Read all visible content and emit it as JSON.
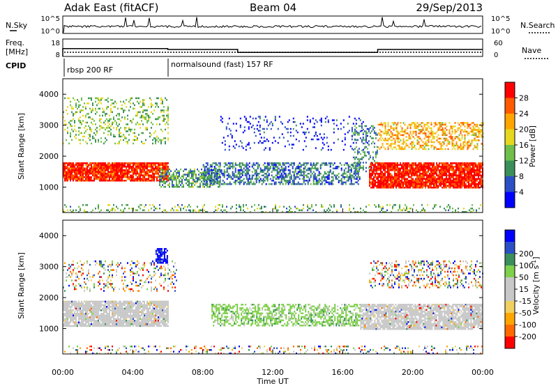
{
  "header": {
    "radar": "Adak East (fitACF)",
    "beam": "Beam 04",
    "date": "29/Sep/2013"
  },
  "top_panels": {
    "nsky": {
      "left_label": "N.Sky",
      "left_ticks": [
        "10^5",
        "10^0"
      ],
      "right_label": "N.Search",
      "right_ticks": [
        "10^5",
        "10^0"
      ]
    },
    "freq": {
      "left_label_1": "Freq.",
      "left_label_2": "[MHz]",
      "left_ticks": [
        "18",
        "8"
      ],
      "right_label": "Nave",
      "right_ticks": [
        "60",
        "0"
      ]
    },
    "cpid": {
      "label": "CPID",
      "segments": [
        {
          "label": "rbsp 200 RF",
          "start_ut": 0.0,
          "end_ut": 6.0
        },
        {
          "label": "normalsound (fast) 157 RF",
          "start_ut": 6.0,
          "end_ut": 24.0
        }
      ]
    }
  },
  "chart_data": [
    {
      "type": "heatmap",
      "name": "power",
      "ylabel": "Slant Range [km]",
      "xlabel": "",
      "xlim_ut": [
        0,
        24
      ],
      "ylim": [
        180,
        4500
      ],
      "yticks": [
        1000,
        2000,
        3000,
        4000
      ],
      "colorbar": {
        "label": "Power [dB]",
        "ticks": [
          4,
          8,
          12,
          16,
          20,
          24,
          28
        ],
        "range": [
          0,
          32
        ],
        "colors": [
          "#0000ff",
          "#2b4fc4",
          "#3a8f5a",
          "#6fbf4a",
          "#e6d820",
          "#ffa500",
          "#ff5a00",
          "#ff0000"
        ]
      },
      "bands": [
        {
          "t0": 0.0,
          "t1": 6.0,
          "r0": 1200,
          "r1": 1800,
          "level": 0.9,
          "density": 0.9
        },
        {
          "t0": 0.0,
          "t1": 6.0,
          "r0": 2400,
          "r1": 3900,
          "level": 0.45,
          "density": 0.25
        },
        {
          "t0": 5.5,
          "t1": 9.0,
          "r0": 1000,
          "r1": 1600,
          "level": 0.35,
          "density": 0.55
        },
        {
          "t0": 8.0,
          "t1": 17.0,
          "r0": 1100,
          "r1": 1800,
          "level": 0.25,
          "density": 0.55
        },
        {
          "t0": 9.0,
          "t1": 17.5,
          "r0": 2200,
          "r1": 3300,
          "level": 0.1,
          "density": 0.12
        },
        {
          "t0": 16.5,
          "t1": 18.0,
          "r0": 1500,
          "r1": 3000,
          "level": 0.3,
          "density": 0.35
        },
        {
          "t0": 17.5,
          "t1": 24.0,
          "r0": 1000,
          "r1": 1800,
          "level": 0.92,
          "density": 0.9
        },
        {
          "t0": 18.0,
          "t1": 24.0,
          "r0": 2200,
          "r1": 3100,
          "level": 0.65,
          "density": 0.45
        },
        {
          "t0": 0.0,
          "t1": 24.0,
          "r0": 200,
          "r1": 450,
          "level": 0.4,
          "density": 0.2
        }
      ]
    },
    {
      "type": "heatmap",
      "name": "velocity",
      "ylabel": "Slant Range [km]",
      "xlabel": "Time UT",
      "xlim_ut": [
        0,
        24
      ],
      "ylim": [
        180,
        4500
      ],
      "yticks": [
        1000,
        2000,
        3000,
        4000
      ],
      "xticks": [
        "00:00",
        "04:00",
        "08:00",
        "12:00",
        "16:00",
        "20:00",
        "00:00"
      ],
      "colorbar": {
        "label": "Velocity [m s^-1]",
        "ticks": [
          -200,
          -100,
          -50,
          -15,
          15,
          50,
          100,
          200
        ],
        "colors": [
          "#ff0000",
          "#ff6a00",
          "#ffa500",
          "#f0d060",
          "#c8c8c8",
          "#c8c8c8",
          "#7fd04a",
          "#3a8f5a",
          "#2b4fc4",
          "#0000ff"
        ]
      },
      "bands": [
        {
          "t0": 0.0,
          "t1": 6.0,
          "r0": 1100,
          "r1": 1900,
          "kind": "gray",
          "density": 0.9
        },
        {
          "t0": 0.0,
          "t1": 6.5,
          "r0": 2200,
          "r1": 3200,
          "kind": "mixed",
          "density": 0.22
        },
        {
          "t0": 5.3,
          "t1": 6.0,
          "r0": 3100,
          "r1": 3600,
          "kind": "blue",
          "density": 0.7
        },
        {
          "t0": 8.5,
          "t1": 17.0,
          "r0": 1100,
          "r1": 1800,
          "kind": "green",
          "density": 0.55
        },
        {
          "t0": 17.0,
          "t1": 24.0,
          "r0": 1000,
          "r1": 1800,
          "kind": "gray",
          "density": 0.85
        },
        {
          "t0": 17.5,
          "t1": 24.0,
          "r0": 2300,
          "r1": 3200,
          "kind": "mixed",
          "density": 0.3
        },
        {
          "t0": 0.0,
          "t1": 24.0,
          "r0": 200,
          "r1": 450,
          "kind": "mixed",
          "density": 0.2
        }
      ]
    }
  ],
  "frequency_series": {
    "freq_mhz_segments": [
      {
        "t0": 0.0,
        "t1": 6.0,
        "value": 12.5
      },
      {
        "t0": 6.0,
        "t1": 10.0,
        "value": 12.0
      },
      {
        "t0": 10.0,
        "t1": 18.0,
        "value": 10.3
      },
      {
        "t0": 18.0,
        "t1": 24.0,
        "value": 12.0
      }
    ]
  }
}
